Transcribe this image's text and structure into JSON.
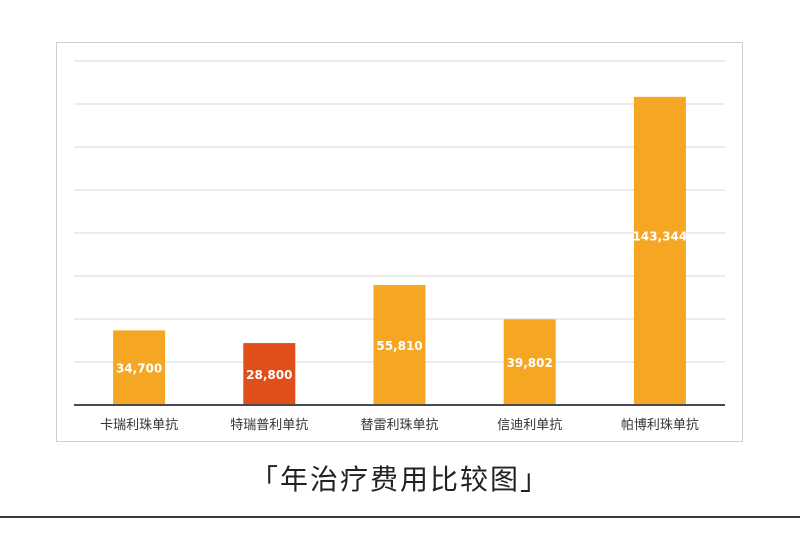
{
  "caption": "「年治疗费用比较图」",
  "chart_data": {
    "type": "bar",
    "categories": [
      "卡瑞利珠单抗",
      "特瑞普利单抗",
      "替雷利珠单抗",
      "信迪利单抗",
      "帕博利珠单抗"
    ],
    "values": [
      34700,
      28800,
      55810,
      39802,
      143344
    ],
    "data_labels": [
      "34,700",
      "28,800",
      "55,810",
      "39,802",
      "143,344"
    ],
    "ylim": [
      0,
      160000
    ],
    "gridlines": true,
    "legend": false,
    "colors": {
      "default_bar": "#F5A623",
      "highlight_bar": "#E04E1B",
      "highlight_index": 1,
      "label_text": "#ffffff",
      "axis_text": "#333333",
      "grid": "#d9d9d9"
    }
  }
}
